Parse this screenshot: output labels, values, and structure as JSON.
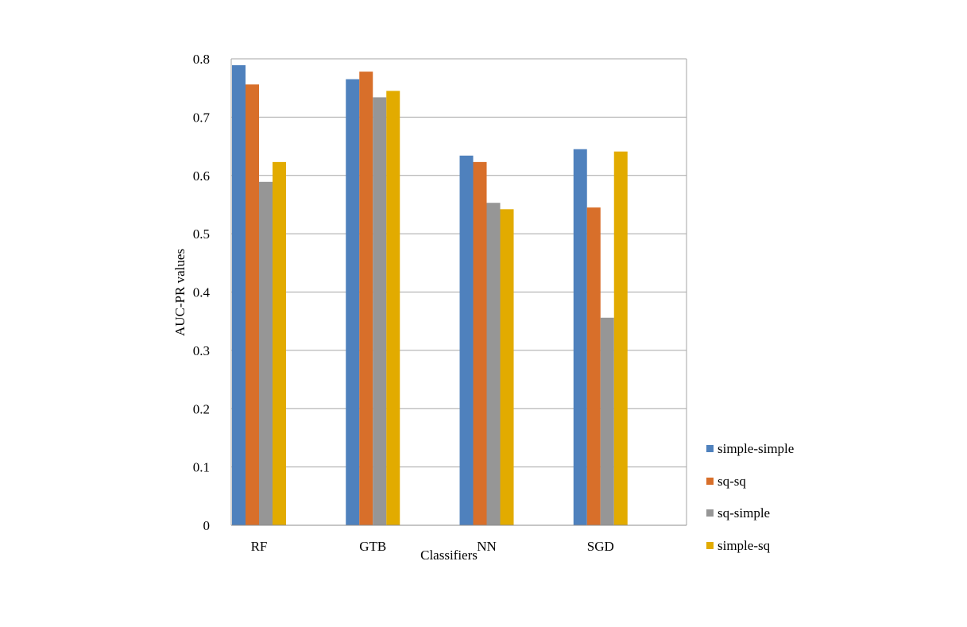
{
  "chart_data": {
    "type": "bar",
    "title": "",
    "xlabel": "Classifiers",
    "ylabel": "AUC-PR values",
    "categories": [
      "RF",
      "GTB",
      "NN",
      "SGD"
    ],
    "ylim": [
      0,
      0.8
    ],
    "yticks": [
      0,
      0.1,
      0.2,
      0.3,
      0.4,
      0.5,
      0.6,
      0.7,
      0.8
    ],
    "ytick_labels": [
      "0",
      "0.1",
      "0.2",
      "0.3",
      "0.4",
      "0.5",
      "0.6",
      "0.7",
      "0.8"
    ],
    "grid": true,
    "legend_position": "right-bottom",
    "series": [
      {
        "name": "simple-simple",
        "color": "#4f81bd",
        "values": [
          0.789,
          0.765,
          0.634,
          0.645
        ]
      },
      {
        "name": "sq-sq",
        "color": "#d86f2a",
        "values": [
          0.756,
          0.778,
          0.623,
          0.545
        ]
      },
      {
        "name": "sq-simple",
        "color": "#969696",
        "values": [
          0.589,
          0.734,
          0.553,
          0.356
        ]
      },
      {
        "name": "simple-sq",
        "color": "#e2ab00",
        "values": [
          0.623,
          0.745,
          0.542,
          0.641
        ]
      }
    ]
  }
}
